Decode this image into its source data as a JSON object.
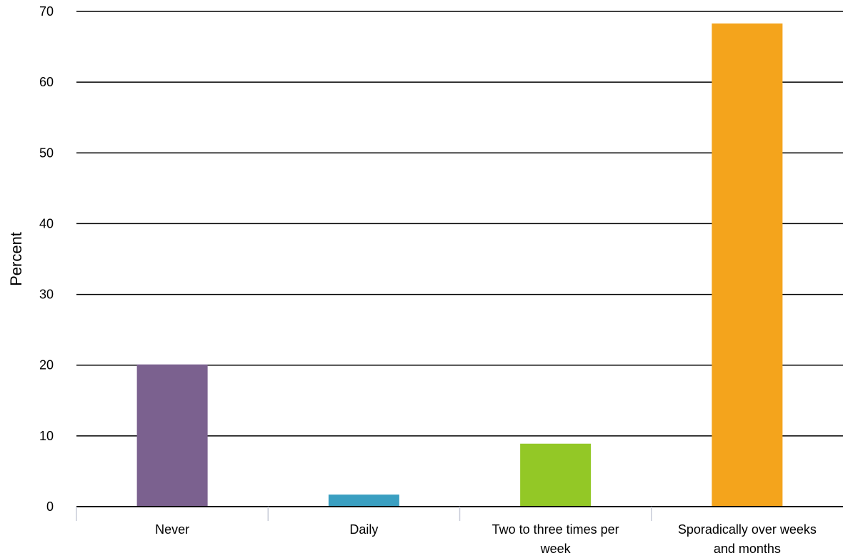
{
  "chart_data": {
    "type": "bar",
    "title": "",
    "xlabel": "",
    "ylabel": "Percent",
    "categories": [
      [
        "Never"
      ],
      [
        "Daily"
      ],
      [
        "Two to three times per",
        "week"
      ],
      [
        "Sporadically over weeks",
        "and months"
      ]
    ],
    "values": [
      20.1,
      1.7,
      8.9,
      68.3
    ],
    "colors": [
      "#7b618f",
      "#3a9fc1",
      "#93c826",
      "#f4a41c"
    ],
    "ylim": [
      0,
      70
    ],
    "yticks": [
      0,
      10,
      20,
      30,
      40,
      50,
      60,
      70
    ],
    "grid": true,
    "legend": "none"
  }
}
